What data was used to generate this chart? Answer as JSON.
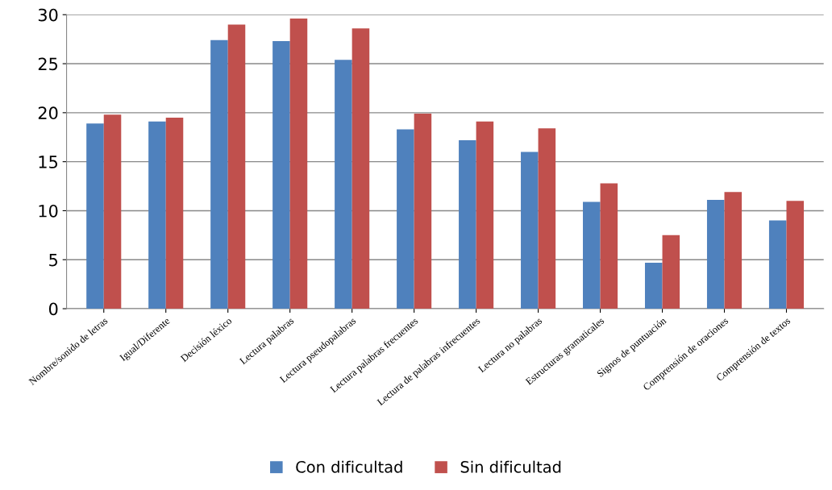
{
  "chart_data": {
    "type": "bar",
    "categories": [
      "Nombre/sonido de letras",
      "Igual/Diferente",
      "Decisión léxico",
      "Lectura palabras",
      "Lectura pseudopalabras",
      "Lectura palabras frecuentes",
      "Lectura de palabras infrecuentes",
      "Lectura no palabras",
      "Estructuras gramaticales",
      "Signos de puntuación",
      "Comprensión de oraciones",
      "Comprensión de textos"
    ],
    "series": [
      {
        "name": "Con dificultad",
        "color": "#4f81bd",
        "values": [
          18.9,
          19.1,
          27.4,
          27.3,
          25.4,
          18.3,
          17.2,
          16.0,
          10.9,
          4.7,
          11.1,
          9.0
        ]
      },
      {
        "name": "Sin dificultad",
        "color": "#c0504d",
        "values": [
          19.8,
          19.5,
          29.0,
          29.6,
          28.6,
          19.9,
          19.1,
          18.4,
          12.8,
          7.5,
          11.9,
          11.0
        ]
      }
    ],
    "ylim": [
      0,
      30
    ],
    "yticks": [
      0,
      5,
      10,
      15,
      20,
      25,
      30
    ],
    "grid": "y",
    "legend": "bottom"
  }
}
